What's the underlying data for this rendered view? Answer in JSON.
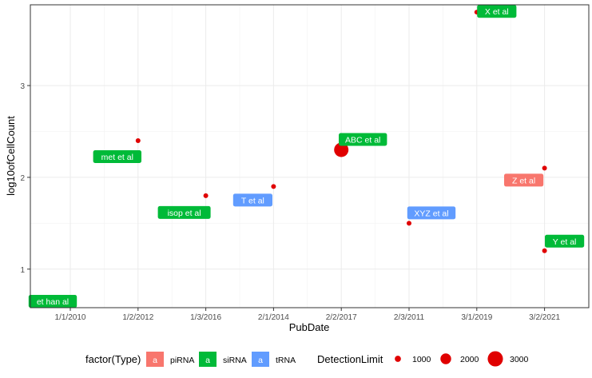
{
  "chart_data": {
    "type": "scatter",
    "title": "",
    "xlabel": "PubDate",
    "ylabel": "log10ofCellCount",
    "x_categories": [
      "1/1/2010",
      "1/2/2012",
      "1/3/2016",
      "2/1/2014",
      "2/2/2017",
      "2/3/2011",
      "3/1/2019",
      "3/2/2021"
    ],
    "y_ticks": [
      1,
      2,
      3
    ],
    "ylim": [
      0.58,
      3.88
    ],
    "grid": true,
    "points": [
      {
        "x": "1/2/2012",
        "y": 2.4,
        "detection_limit": 1000,
        "label": "met et al",
        "type": "siRNA"
      },
      {
        "x": "1/3/2016",
        "y": 1.8,
        "detection_limit": 1000,
        "label": "isop et al",
        "type": "siRNA"
      },
      {
        "x": "2/1/2014",
        "y": 1.9,
        "detection_limit": 1000,
        "label": "T et al",
        "type": "tRNA"
      },
      {
        "x": "2/2/2017",
        "y": 2.3,
        "detection_limit": 3000,
        "label": "ABC et al",
        "type": "siRNA"
      },
      {
        "x": "2/3/2011",
        "y": 1.5,
        "detection_limit": 1000,
        "label": "XYZ et al",
        "type": "tRNA"
      },
      {
        "x": "3/1/2019",
        "y": 3.8,
        "detection_limit": 1000,
        "label": "X et al",
        "type": "siRNA"
      },
      {
        "x": "3/2/2021",
        "y": 2.1,
        "detection_limit": 1000,
        "label": "Z et al",
        "type": "piRNA"
      },
      {
        "x": "3/2/2021",
        "y": 1.2,
        "detection_limit": 1000,
        "label": "Y et al",
        "type": "siRNA"
      }
    ],
    "extra_labels": [
      {
        "x": "1/1/2010",
        "y": 0.65,
        "label": "et han al",
        "type": "siRNA"
      }
    ],
    "point_color": "#e00000",
    "type_colors": {
      "piRNA": "#f8766d",
      "siRNA": "#00ba38",
      "tRNA": "#619cff"
    },
    "legend": {
      "position": "bottom",
      "type_title": "factor(Type)",
      "type_entries": [
        "piRNA",
        "siRNA",
        "tRNA"
      ],
      "key_glyph": "a",
      "size_title": "DetectionLimit",
      "size_entries": [
        1000,
        2000,
        3000
      ]
    }
  }
}
